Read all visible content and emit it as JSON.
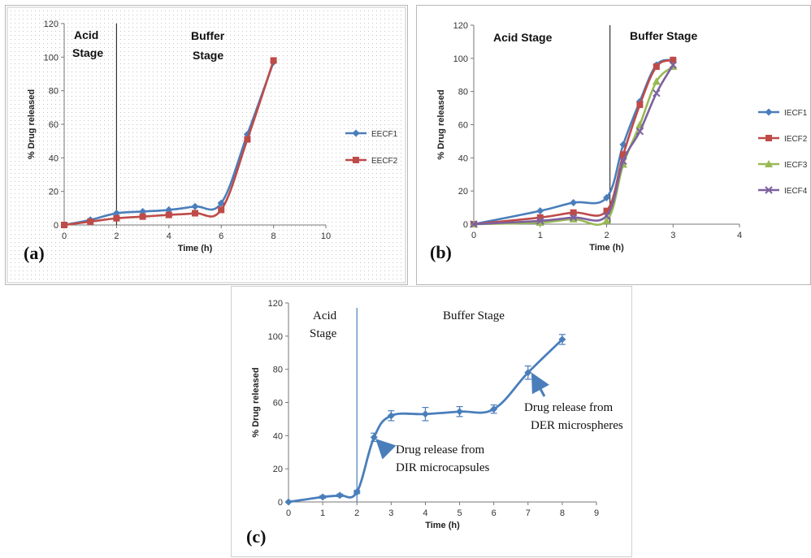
{
  "chart_data": [
    {
      "type": "line",
      "panel_label": "(a)",
      "xlabel": "Time (h)",
      "ylabel": "% Drug released",
      "xlim": [
        0,
        10
      ],
      "ylim": [
        0,
        120
      ],
      "xticks": [
        "0",
        "2",
        "4",
        "6",
        "8",
        "10"
      ],
      "yticks": [
        "0",
        "20",
        "40",
        "60",
        "80",
        "100",
        "120"
      ],
      "grid": false,
      "legend_position": "right",
      "divider_x": 2,
      "stage_labels": {
        "acid_line1": "Acid",
        "acid_line2": "Stage",
        "buffer_line1": "Buffer",
        "buffer_line2": "Stage"
      },
      "series": [
        {
          "name": "EECF1",
          "color": "#4a7ebb",
          "marker": "diamond",
          "x": [
            0,
            1,
            2,
            3,
            4,
            5,
            6,
            7,
            8
          ],
          "y": [
            0,
            3,
            7,
            8,
            9,
            11,
            13,
            54,
            97
          ]
        },
        {
          "name": "EECF2",
          "color": "#be4b48",
          "marker": "square",
          "x": [
            0,
            1,
            2,
            3,
            4,
            5,
            6,
            7,
            8
          ],
          "y": [
            0,
            2,
            4,
            5,
            6,
            7,
            9,
            51,
            98
          ]
        }
      ]
    },
    {
      "type": "line",
      "panel_label": "(b)",
      "xlabel": "Time (h)",
      "ylabel": "% Drug released",
      "xlim": [
        0,
        4
      ],
      "ylim": [
        0,
        120
      ],
      "xticks": [
        "0",
        "1",
        "2",
        "3",
        "4"
      ],
      "yticks": [
        "0",
        "20",
        "40",
        "60",
        "80",
        "100",
        "120"
      ],
      "grid": false,
      "legend_position": "right",
      "divider_x": 2.05,
      "stage_labels": {
        "acid": "Acid Stage",
        "buffer": "Buffer Stage"
      },
      "series": [
        {
          "name": "IECF1",
          "color": "#4a7ebb",
          "marker": "diamond",
          "x": [
            0,
            1,
            1.5,
            2,
            2.25,
            2.5,
            2.75,
            3
          ],
          "y": [
            0,
            8,
            13,
            16,
            48,
            74,
            96,
            99
          ]
        },
        {
          "name": "IECF2",
          "color": "#be4b48",
          "marker": "square",
          "x": [
            0,
            1,
            1.5,
            2,
            2.25,
            2.5,
            2.75,
            3
          ],
          "y": [
            0,
            4,
            7,
            8,
            42,
            72,
            95,
            99
          ]
        },
        {
          "name": "IECF3",
          "color": "#98b954",
          "marker": "triangle",
          "x": [
            0,
            1,
            1.5,
            2,
            2.25,
            2.5,
            2.75,
            3
          ],
          "y": [
            0,
            1,
            3,
            2,
            36,
            60,
            86,
            95
          ]
        },
        {
          "name": "IECF4",
          "color": "#7d60a0",
          "marker": "x",
          "x": [
            0,
            1,
            1.5,
            2,
            2.25,
            2.5,
            2.75,
            3
          ],
          "y": [
            0,
            2,
            4,
            5,
            38,
            56,
            79,
            96
          ]
        }
      ]
    },
    {
      "type": "line",
      "panel_label": "(c)",
      "xlabel": "Time (h)",
      "ylabel": "% Drug released",
      "xlim": [
        0,
        9
      ],
      "ylim": [
        0,
        120
      ],
      "xticks": [
        "0",
        "1",
        "2",
        "3",
        "4",
        "5",
        "6",
        "7",
        "8",
        "9"
      ],
      "yticks": [
        "0",
        "20",
        "40",
        "60",
        "80",
        "100",
        "120"
      ],
      "grid": false,
      "divider_x": 2,
      "stage_labels": {
        "acid_line1": "Acid",
        "acid_line2": "Stage",
        "buffer": "Buffer Stage"
      },
      "annotations": [
        {
          "line1": "Drug release from",
          "line2": "DIR microcapsules",
          "arrow_to": [
            2.5,
            39
          ]
        },
        {
          "line1": "Drug release from",
          "line2": "DER microspheres",
          "arrow_to": [
            7,
            78
          ]
        }
      ],
      "series": [
        {
          "name": "",
          "color": "#4a7ebb",
          "marker": "diamond",
          "x": [
            0,
            1,
            1.5,
            2,
            2.5,
            3,
            4,
            5,
            6,
            7,
            8
          ],
          "y": [
            0,
            3,
            4,
            6,
            39,
            52,
            53,
            54.5,
            56,
            78,
            98
          ],
          "error": [
            0,
            0.8,
            0.8,
            1,
            2.5,
            3,
            4,
            3,
            2.5,
            4,
            3
          ]
        }
      ]
    }
  ]
}
